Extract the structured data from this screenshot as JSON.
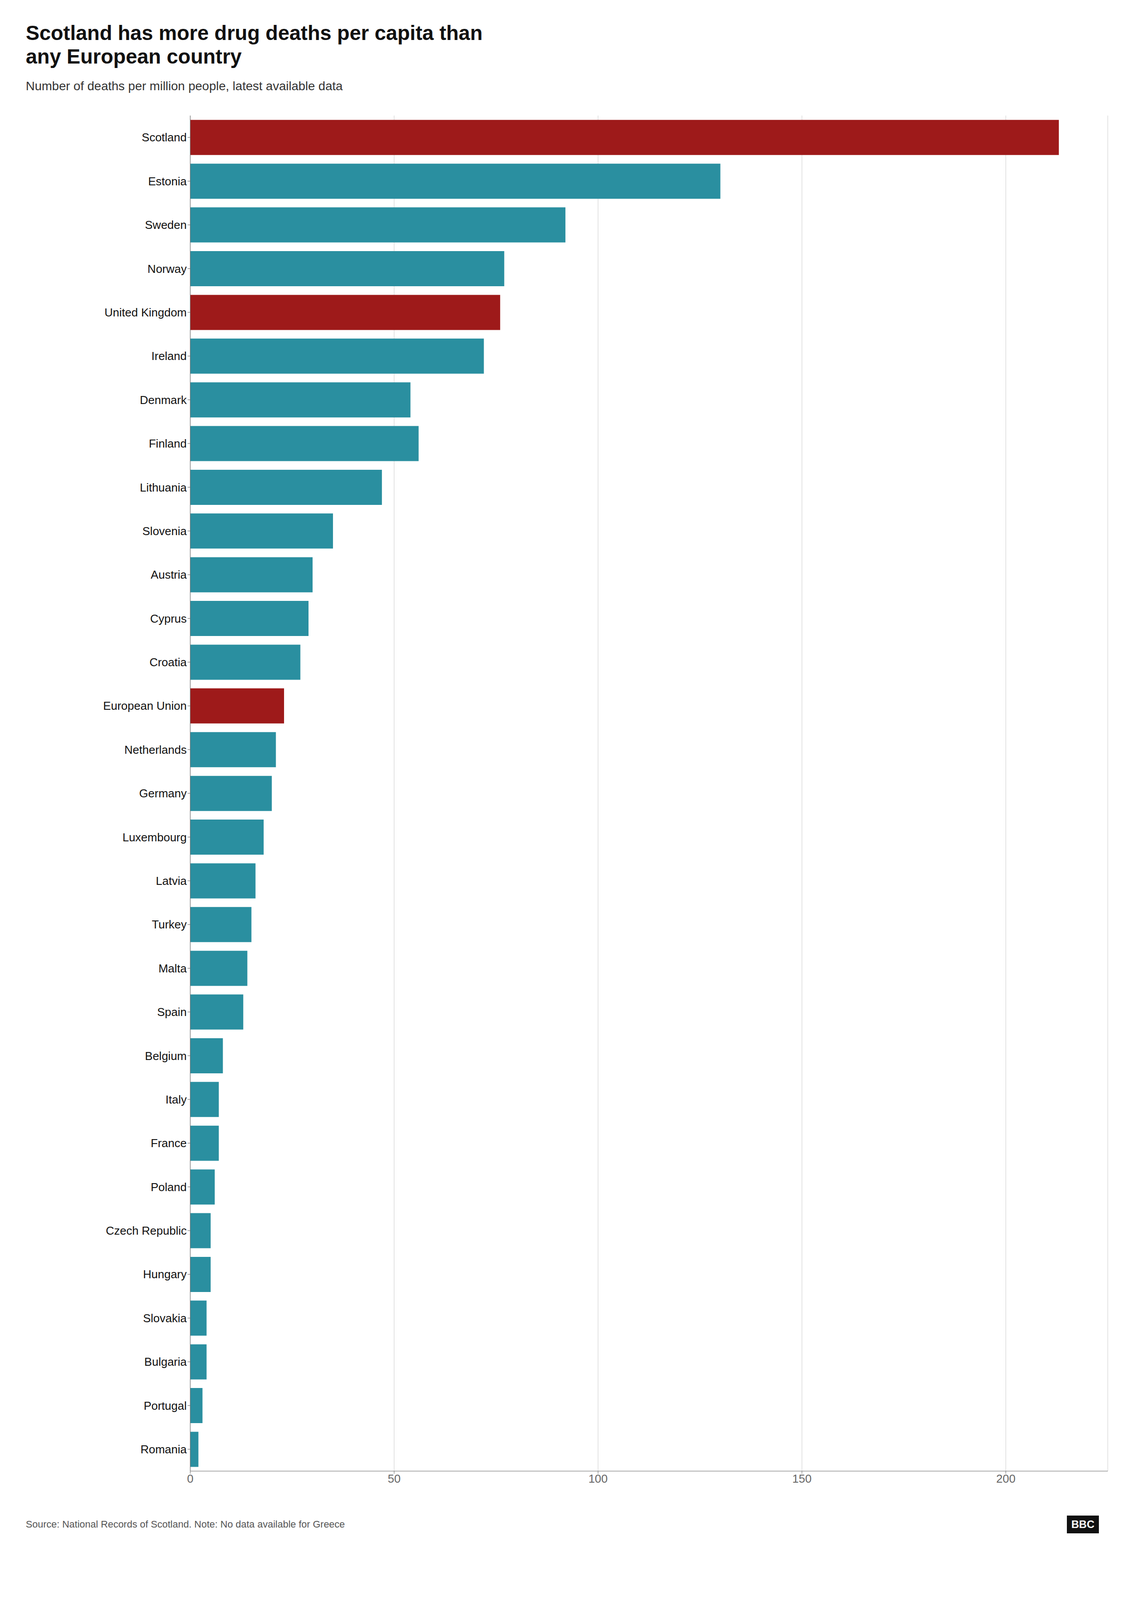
{
  "chart_data": {
    "type": "bar",
    "orientation": "horizontal",
    "title": "Scotland has more drug deaths per capita than\nany European country",
    "subtitle": "Number of deaths per million people, latest available data",
    "annotations": [
      "Source: National Records of Scotland. Note: No data available for Greece",
      "BBC"
    ],
    "categories": [
      "Scotland",
      "Estonia",
      "Sweden",
      "Norway",
      "United Kingdom",
      "Ireland",
      "Denmark",
      "Finland",
      "Lithuania",
      "Slovenia",
      "Austria",
      "Cyprus",
      "Croatia",
      "European Union",
      "Netherlands",
      "Germany",
      "Luxembourg",
      "Latvia",
      "Turkey",
      "Malta",
      "Spain",
      "Belgium",
      "Italy",
      "France",
      "Poland",
      "Czech Republic",
      "Hungary",
      "Slovakia",
      "Bulgaria",
      "Portugal",
      "Romania"
    ],
    "values": [
      213,
      130,
      92,
      77,
      76,
      72,
      54,
      56,
      47,
      35,
      30,
      29,
      27,
      23,
      21,
      20,
      18,
      16,
      15,
      14,
      13,
      8,
      7,
      7,
      6,
      5,
      5,
      4,
      4,
      3,
      2
    ],
    "colors": [
      "#9e1a1a",
      "#2a8fa0",
      "#2a8fa0",
      "#2a8fa0",
      "#9e1a1a",
      "#2a8fa0",
      "#2a8fa0",
      "#2a8fa0",
      "#2a8fa0",
      "#2a8fa0",
      "#2a8fa0",
      "#2a8fa0",
      "#2a8fa0",
      "#9e1a1a",
      "#2a8fa0",
      "#2a8fa0",
      "#2a8fa0",
      "#2a8fa0",
      "#2a8fa0",
      "#2a8fa0",
      "#2a8fa0",
      "#2a8fa0",
      "#2a8fa0",
      "#2a8fa0",
      "#2a8fa0",
      "#2a8fa0",
      "#2a8fa0",
      "#2a8fa0",
      "#2a8fa0",
      "#2a8fa0",
      "#2a8fa0"
    ],
    "xlim": [
      0,
      225
    ],
    "xticks": [
      0,
      50,
      100,
      150,
      200
    ],
    "grid": true
  }
}
